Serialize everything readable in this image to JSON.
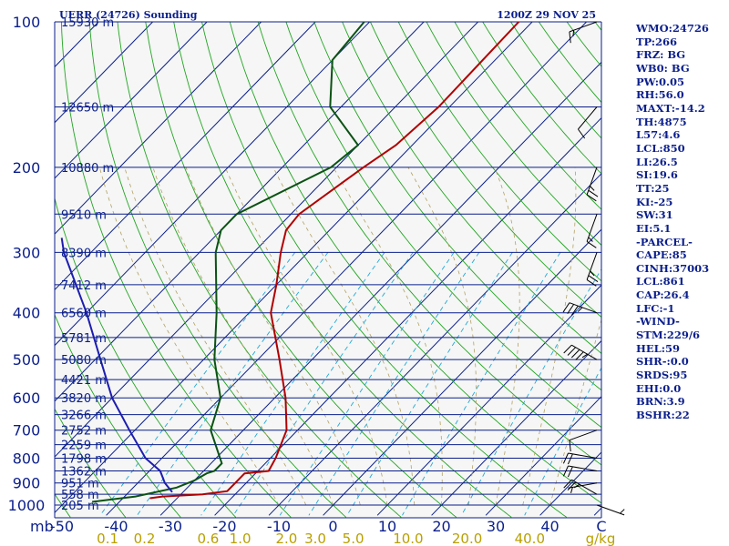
{
  "header": {
    "station_title": "UERR (24726) Sounding",
    "time_title": "1200Z 29 NOV 25"
  },
  "indices": [
    "WMO:24726",
    "TP:266",
    "FRZ: BG",
    "WB0: BG",
    "PW:0.05",
    "RH:56.0",
    "MAXT:-14.2",
    "TH:4875",
    "L57:4.6",
    "LCL:850",
    "LI:26.5",
    "SI:19.6",
    "TT:25",
    "KI:-25",
    "SW:31",
    "EI:5.1",
    "-PARCEL-",
    "CAPE:85",
    "CINH:37003",
    "LCL:861",
    "CAP:26.4",
    "LFC:-1",
    "-WIND-",
    "STM:229/6",
    "HEL:59",
    "SHR-:0.0",
    "SRDS:95",
    "EHI:0.0",
    "BRN:3.9",
    "BSHR:22"
  ],
  "colors": {
    "frame": "#0b1f8c",
    "isobar": "#0b1f8c",
    "isotherm": "#0b1f8c",
    "dry_adiabat": "#23a423",
    "moist_adiabat": "#b4a064",
    "mixing_ratio": "#22a8d8",
    "temperature": "#b00000",
    "dewpoint": "#0b5214",
    "parcel": "#1d1db0",
    "wind": "#000000",
    "panel_text": "#0b1f8c",
    "mixing_label": "#b8a000"
  },
  "chart_data": {
    "type": "skew-t log-p",
    "pressure_axis_unit": "mb",
    "pressure_levels": [
      "100",
      "200",
      "300",
      "400",
      "500",
      "600",
      "700",
      "800",
      "900",
      "1000"
    ],
    "pressure_ticks_hpa": [
      100,
      200,
      300,
      400,
      500,
      600,
      700,
      800,
      900,
      1000
    ],
    "minor_isobars_hpa": [
      150,
      250,
      350,
      450,
      550,
      650,
      750,
      850,
      950
    ],
    "height_labels": [
      {
        "p": 100,
        "label": "15930 m"
      },
      {
        "p": 150,
        "label": "12650 m"
      },
      {
        "p": 200,
        "label": "10880 m"
      },
      {
        "p": 250,
        "label": "9510 m"
      },
      {
        "p": 300,
        "label": "8390 m"
      },
      {
        "p": 350,
        "label": "7412 m"
      },
      {
        "p": 400,
        "label": "6560 m"
      },
      {
        "p": 450,
        "label": "5781 m"
      },
      {
        "p": 500,
        "label": "5080 m"
      },
      {
        "p": 550,
        "label": "4421 m"
      },
      {
        "p": 600,
        "label": "3820 m"
      },
      {
        "p": 650,
        "label": "3266 m"
      },
      {
        "p": 700,
        "label": "2752 m"
      },
      {
        "p": 750,
        "label": "2259 m"
      },
      {
        "p": 800,
        "label": "1798 m"
      },
      {
        "p": 850,
        "label": "1362 m"
      },
      {
        "p": 900,
        "label": "951 m"
      },
      {
        "p": 950,
        "label": "558 m"
      },
      {
        "p": 1000,
        "label": "205 m"
      }
    ],
    "temperature_axis_labels": [
      "-50",
      "-40",
      "-30",
      "-20",
      "-10",
      "0",
      "10",
      "20",
      "30",
      "40",
      "C"
    ],
    "temperature_ticks_c": [
      -50,
      -40,
      -30,
      -20,
      -10,
      0,
      10,
      20,
      30,
      40
    ],
    "temperature_unit": "C",
    "mixing_ratio_labels": [
      "0.1",
      "0.2",
      "0.6",
      "1.0",
      "2.0",
      "3.0",
      "5.0",
      "10.0",
      "20.0",
      "40.0",
      "g/kg"
    ],
    "mixing_ratio_values": [
      0.1,
      0.2,
      0.6,
      1.0,
      2.0,
      3.0,
      5.0,
      10.0,
      20.0,
      40.0
    ],
    "mixing_ratio_unit": "g/kg",
    "series": [
      {
        "key": "temperature",
        "points": [
          {
            "p": 968,
            "t": -35
          },
          {
            "p": 960,
            "t": -33
          },
          {
            "p": 950,
            "t": -26
          },
          {
            "p": 936,
            "t": -22
          },
          {
            "p": 900,
            "t": -22
          },
          {
            "p": 860,
            "t": -22
          },
          {
            "p": 850,
            "t": -18
          },
          {
            "p": 800,
            "t": -19
          },
          {
            "p": 700,
            "t": -22
          },
          {
            "p": 600,
            "t": -28
          },
          {
            "p": 500,
            "t": -36
          },
          {
            "p": 400,
            "t": -46
          },
          {
            "p": 350,
            "t": -50
          },
          {
            "p": 300,
            "t": -55
          },
          {
            "p": 270,
            "t": -58
          },
          {
            "p": 250,
            "t": -58.5
          },
          {
            "p": 200,
            "t": -55
          },
          {
            "p": 180,
            "t": -53
          },
          {
            "p": 150,
            "t": -52
          },
          {
            "p": 100,
            "t": -52.5
          }
        ]
      },
      {
        "key": "dewpoint",
        "points": [
          {
            "p": 985,
            "t": -45
          },
          {
            "p": 960,
            "t": -38
          },
          {
            "p": 920,
            "t": -32
          },
          {
            "p": 890,
            "t": -30
          },
          {
            "p": 860,
            "t": -29
          },
          {
            "p": 850,
            "t": -28
          },
          {
            "p": 820,
            "t": -28
          },
          {
            "p": 700,
            "t": -36
          },
          {
            "p": 600,
            "t": -40
          },
          {
            "p": 500,
            "t": -48
          },
          {
            "p": 400,
            "t": -56
          },
          {
            "p": 300,
            "t": -67
          },
          {
            "p": 270,
            "t": -70
          },
          {
            "p": 250,
            "t": -70
          },
          {
            "p": 200,
            "t": -61
          },
          {
            "p": 180,
            "t": -60
          },
          {
            "p": 150,
            "t": -72
          },
          {
            "p": 120,
            "t": -80
          },
          {
            "p": 100,
            "t": -81
          }
        ]
      },
      {
        "key": "parcel",
        "points": [
          {
            "p": 940,
            "t": -32
          },
          {
            "p": 900,
            "t": -35
          },
          {
            "p": 850,
            "t": -38
          },
          {
            "p": 800,
            "t": -43
          },
          {
            "p": 700,
            "t": -51
          },
          {
            "p": 600,
            "t": -60
          },
          {
            "p": 500,
            "t": -69
          },
          {
            "p": 400,
            "t": -80
          },
          {
            "p": 300,
            "t": -95
          },
          {
            "p": 280,
            "t": -98
          }
        ]
      }
    ],
    "wind_barbs": [
      {
        "p": 1000,
        "dir": 110,
        "spd": 5
      },
      {
        "p": 950,
        "dir": 300,
        "spd": 25
      },
      {
        "p": 900,
        "dir": 260,
        "spd": 5
      },
      {
        "p": 850,
        "dir": 280,
        "spd": 20
      },
      {
        "p": 800,
        "dir": 280,
        "spd": 20
      },
      {
        "p": 700,
        "dir": 250,
        "spd": 10
      },
      {
        "p": 500,
        "dir": 300,
        "spd": 45
      },
      {
        "p": 400,
        "dir": 290,
        "spd": 35
      },
      {
        "p": 300,
        "dir": 200,
        "spd": 25
      },
      {
        "p": 250,
        "dir": 200,
        "spd": 15
      },
      {
        "p": 200,
        "dir": 200,
        "spd": 25
      },
      {
        "p": 150,
        "dir": 220,
        "spd": 10
      },
      {
        "p": 100,
        "dir": 250,
        "spd": 15
      }
    ],
    "title": "UERR (24726) Sounding"
  }
}
